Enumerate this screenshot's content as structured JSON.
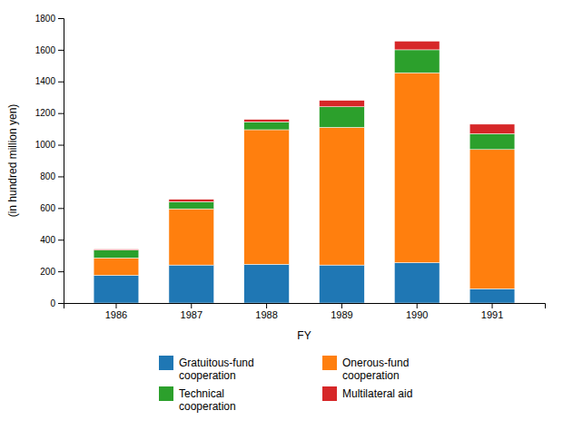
{
  "chart_data": {
    "type": "bar",
    "stacked": true,
    "xlabel": "FY",
    "ylabel": "(in hundred million yen)",
    "categories": [
      "1986",
      "1987",
      "1988",
      "1989",
      "1990",
      "1991"
    ],
    "series": [
      {
        "name": "Gratuitous-fund\ncooperation",
        "values": [
          175,
          240,
          245,
          240,
          255,
          90
        ]
      },
      {
        "name": "Onerous-fund\ncooperation",
        "values": [
          110,
          355,
          850,
          870,
          1200,
          880
        ]
      },
      {
        "name": "Technical\ncooperation",
        "values": [
          50,
          45,
          50,
          130,
          145,
          100
        ]
      },
      {
        "name": "Multilateral aid",
        "values": [
          5,
          15,
          15,
          40,
          55,
          60
        ]
      }
    ],
    "ylim": [
      0,
      1800
    ],
    "yticks": [
      0,
      200,
      400,
      600,
      800,
      1000,
      1200,
      1400,
      1600,
      1800
    ],
    "grid": false,
    "legend": "bottom"
  }
}
